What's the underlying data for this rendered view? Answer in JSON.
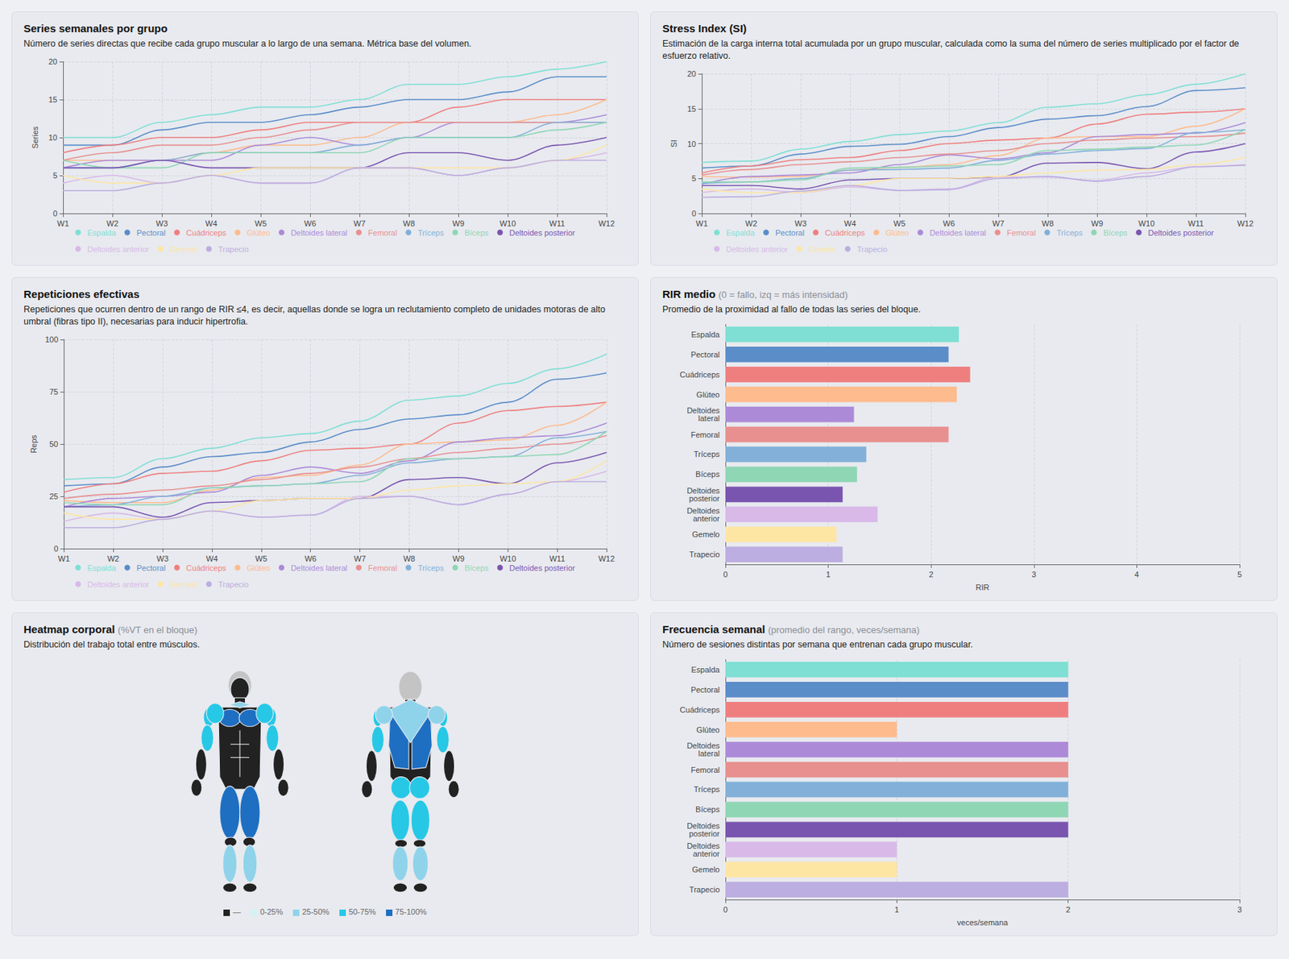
{
  "chart_data": [
    {
      "type": "line",
      "title": "Series semanales por grupo",
      "subtitle": "Número de series directas que recibe cada grupo muscular a lo largo de una semana. Métrica base del volumen.",
      "ylabel": "Series",
      "x": [
        "W1",
        "W2",
        "W3",
        "W4",
        "W5",
        "W6",
        "W7",
        "W8",
        "W9",
        "W10",
        "W11",
        "W12"
      ],
      "ylim": [
        0,
        20
      ],
      "yticks": [
        0,
        5,
        10,
        15,
        20
      ],
      "grid": true,
      "legend": "bottom",
      "series": [
        {
          "name": "Espalda",
          "color": "#7fdfd4",
          "values": [
            10,
            10,
            12,
            13,
            14,
            14,
            15,
            17,
            17,
            18,
            19,
            20
          ]
        },
        {
          "name": "Pectoral",
          "color": "#5b8dc9",
          "values": [
            9,
            9,
            11,
            12,
            12,
            13,
            14,
            15,
            15,
            16,
            18,
            18
          ]
        },
        {
          "name": "Cuádriceps",
          "color": "#ef7f7f",
          "values": [
            8,
            9,
            10,
            10,
            11,
            12,
            12,
            12,
            14,
            15,
            15,
            15
          ]
        },
        {
          "name": "Glúteo",
          "color": "#fdbb8e",
          "values": [
            7,
            7,
            7,
            8,
            9,
            9,
            10,
            12,
            12,
            12,
            13,
            15
          ]
        },
        {
          "name": "Deltoides lateral",
          "color": "#ac8ad8",
          "values": [
            6,
            7,
            7,
            7,
            9,
            10,
            9,
            10,
            12,
            12,
            12,
            13
          ]
        },
        {
          "name": "Femoral",
          "color": "#e8908f",
          "values": [
            7,
            8,
            9,
            9,
            10,
            11,
            12,
            12,
            12,
            12,
            12,
            12
          ]
        },
        {
          "name": "Tríceps",
          "color": "#82b0d9",
          "values": [
            6,
            6,
            7,
            8,
            8,
            8,
            9,
            10,
            10,
            10,
            12,
            12
          ]
        },
        {
          "name": "Bíceps",
          "color": "#8fd6b5",
          "values": [
            7,
            6,
            6,
            8,
            8,
            8,
            8,
            10,
            10,
            10,
            11,
            12
          ]
        },
        {
          "name": "Deltoides posterior",
          "color": "#7a55b0",
          "values": [
            6,
            6,
            7,
            6,
            6,
            6,
            6,
            8,
            8,
            7,
            9,
            10
          ]
        },
        {
          "name": "Deltoides anterior",
          "color": "#d8b9e8",
          "values": [
            4,
            5,
            4,
            5,
            4,
            4,
            6,
            6,
            5,
            6,
            7,
            8
          ]
        },
        {
          "name": "Gemelo",
          "color": "#fde5a4",
          "values": [
            5,
            4,
            4,
            5,
            6,
            6,
            6,
            6,
            6,
            6,
            7,
            9
          ]
        },
        {
          "name": "Trapecio",
          "color": "#bcaee0",
          "values": [
            3,
            3,
            4,
            5,
            4,
            4,
            6,
            6,
            5,
            6,
            7,
            7
          ]
        }
      ]
    },
    {
      "type": "line",
      "title": "Stress Index (SI)",
      "subtitle": "Estimación de la carga interna total acumulada por un grupo muscular, calculada como la suma del número de series multiplicado por el factor de esfuerzo relativo.",
      "ylabel": "SI",
      "x": [
        "W1",
        "W2",
        "W3",
        "W4",
        "W5",
        "W6",
        "W7",
        "W8",
        "W9",
        "W10",
        "W11",
        "W12"
      ],
      "ylim": [
        0,
        20
      ],
      "yticks": [
        0,
        5,
        10,
        15,
        20
      ],
      "grid": true,
      "legend": "bottom",
      "series": [
        {
          "name": "Espalda",
          "color": "#7fdfd4",
          "values": [
            7.3,
            7.5,
            9.2,
            10.3,
            11.3,
            11.8,
            13,
            15.2,
            15.7,
            17,
            18.5,
            20
          ]
        },
        {
          "name": "Pectoral",
          "color": "#5b8dc9",
          "values": [
            6.5,
            6.8,
            8.5,
            9.6,
            9.9,
            11,
            12.3,
            13.5,
            14,
            15.3,
            17.6,
            18
          ]
        },
        {
          "name": "Cuádriceps",
          "color": "#ef7f7f",
          "values": [
            5.8,
            6.8,
            7.7,
            8,
            9,
            10,
            10.5,
            10.8,
            12.8,
            14.2,
            14.5,
            15
          ]
        },
        {
          "name": "Glúteo",
          "color": "#fdbb8e",
          "values": [
            5.3,
            5.2,
            5.3,
            6.2,
            6.6,
            7,
            8.3,
            10.8,
            11,
            11,
            12.5,
            15
          ]
        },
        {
          "name": "Deltoides lateral",
          "color": "#ac8ad8",
          "values": [
            4.2,
            5.3,
            5.5,
            5.8,
            7,
            8.4,
            7.8,
            8.7,
            11,
            11.3,
            11.5,
            13
          ]
        },
        {
          "name": "Femoral",
          "color": "#e8908f",
          "values": [
            5.5,
            6.3,
            7,
            7.4,
            8,
            8.5,
            9,
            10,
            10.5,
            10.8,
            11,
            11.5
          ]
        },
        {
          "name": "Tríceps",
          "color": "#82b0d9",
          "values": [
            4.3,
            4.5,
            5,
            6.2,
            6.3,
            6.5,
            7.6,
            8.5,
            9,
            9.3,
            11.6,
            12
          ]
        },
        {
          "name": "Bíceps",
          "color": "#8fd6b5",
          "values": [
            4.5,
            4.5,
            4.8,
            6.5,
            6.6,
            6.8,
            7,
            9,
            9.2,
            9.5,
            9.8,
            12
          ]
        },
        {
          "name": "Deltoides posterior",
          "color": "#7a55b0",
          "values": [
            4,
            4,
            3.5,
            4.8,
            5,
            5,
            5.2,
            7.2,
            7.3,
            6.4,
            8.8,
            10
          ]
        },
        {
          "name": "Deltoides anterior",
          "color": "#d8b9e8",
          "values": [
            3,
            3.5,
            3,
            3.8,
            3.3,
            3.5,
            5.2,
            5.2,
            4.7,
            5.8,
            6.7,
            7
          ]
        },
        {
          "name": "Gemelo",
          "color": "#fde5a4",
          "values": [
            3.5,
            3,
            3,
            4,
            5,
            5,
            5.3,
            5.8,
            6.2,
            6.3,
            7,
            8
          ]
        },
        {
          "name": "Trapecio",
          "color": "#bcaee0",
          "values": [
            2.3,
            2.4,
            3.2,
            4,
            3.3,
            3.4,
            5,
            5.3,
            4.6,
            5.3,
            6.7,
            6.9
          ]
        }
      ]
    },
    {
      "type": "line",
      "title": "Repeticiones efectivas",
      "subtitle": "Repeticiones que ocurren dentro de un rango de RIR ≤4, es decir, aquellas donde se logra un reclutamiento completo de unidades motoras de alto umbral (fibras tipo II), necesarias para inducir hipertrofia.",
      "ylabel": "Reps",
      "x": [
        "W1",
        "W2",
        "W3",
        "W4",
        "W5",
        "W6",
        "W7",
        "W8",
        "W9",
        "W10",
        "W11",
        "W12"
      ],
      "ylim": [
        0,
        100
      ],
      "yticks": [
        0,
        25,
        50,
        75,
        100
      ],
      "grid": true,
      "legend": "bottom",
      "series": [
        {
          "name": "Espalda",
          "color": "#7fdfd4",
          "values": [
            33,
            34,
            43,
            48,
            53,
            55,
            61,
            71,
            73,
            79,
            86,
            93
          ]
        },
        {
          "name": "Pectoral",
          "color": "#5b8dc9",
          "values": [
            30,
            31,
            39,
            44,
            46,
            51,
            57,
            62,
            64,
            70,
            81,
            84
          ]
        },
        {
          "name": "Cuádriceps",
          "color": "#ef7f7f",
          "values": [
            27,
            31,
            36,
            37,
            42,
            47,
            48,
            50,
            60,
            66,
            68,
            70
          ]
        },
        {
          "name": "Glúteo",
          "color": "#fdbb8e",
          "values": [
            23,
            22,
            22,
            28,
            34,
            35,
            40,
            50,
            51,
            52,
            59,
            70
          ]
        },
        {
          "name": "Deltoides lateral",
          "color": "#ac8ad8",
          "values": [
            20,
            24,
            25,
            27,
            35,
            39,
            36,
            42,
            51,
            53,
            54,
            60
          ]
        },
        {
          "name": "Femoral",
          "color": "#e8908f",
          "values": [
            24,
            26,
            28,
            30,
            33,
            36,
            39,
            43,
            46,
            48,
            50,
            54
          ]
        },
        {
          "name": "Tríceps",
          "color": "#82b0d9",
          "values": [
            20,
            21,
            25,
            29,
            30,
            31,
            35,
            41,
            43,
            44,
            53,
            56
          ]
        },
        {
          "name": "Bíceps",
          "color": "#8fd6b5",
          "values": [
            22,
            21,
            21,
            29,
            30,
            31,
            32,
            43,
            43,
            44,
            45,
            56
          ]
        },
        {
          "name": "Deltoides posterior",
          "color": "#7a55b0",
          "values": [
            20,
            20,
            15,
            22,
            23,
            24,
            24,
            33,
            34,
            31,
            41,
            46
          ]
        },
        {
          "name": "Deltoides anterior",
          "color": "#d8b9e8",
          "values": [
            13,
            17,
            14,
            18,
            15,
            16,
            25,
            25,
            21,
            26,
            32,
            37
          ]
        },
        {
          "name": "Gemelo",
          "color": "#fde5a4",
          "values": [
            17,
            14,
            14,
            18,
            23,
            24,
            24,
            28,
            30,
            31,
            32,
            42
          ]
        },
        {
          "name": "Trapecio",
          "color": "#bcaee0",
          "values": [
            10,
            10,
            14,
            18,
            15,
            16,
            24,
            25,
            21,
            26,
            32,
            32
          ]
        }
      ]
    },
    {
      "type": "bar",
      "orientation": "horizontal",
      "title": "RIR medio",
      "title_note": "(0 = fallo, izq = más intensidad)",
      "subtitle": "Promedio de la proximidad al fallo de todas las series del bloque.",
      "xlabel": "RIR",
      "xlim": [
        0,
        5
      ],
      "xticks": [
        0,
        1,
        2,
        3,
        4,
        5
      ],
      "grid": true,
      "categories": [
        "Espalda",
        "Pectoral",
        "Cuádriceps",
        "Glúteo",
        "Deltoides lateral",
        "Femoral",
        "Tríceps",
        "Bíceps",
        "Deltoides posterior",
        "Deltoides anterior",
        "Gemelo",
        "Trapecio"
      ],
      "values": [
        2.27,
        2.17,
        2.38,
        2.25,
        1.25,
        2.17,
        1.37,
        1.28,
        1.14,
        1.48,
        1.08,
        1.14
      ],
      "colors": [
        "#7fdfd4",
        "#5b8dc9",
        "#ef7f7f",
        "#fdbb8e",
        "#ac8ad8",
        "#e8908f",
        "#82b0d9",
        "#8fd6b5",
        "#7a55b0",
        "#d8b9e8",
        "#fde5a4",
        "#bcaee0"
      ]
    },
    {
      "type": "body_heatmap",
      "title": "Heatmap corporal",
      "title_note": "(%VT en el bloque)",
      "subtitle": "Distribución del trabajo total entre músculos.",
      "levels": [
        {
          "label": "—",
          "color": "#222222"
        },
        {
          "label": "0-25%",
          "color": "#d4f1f4"
        },
        {
          "label": "25-50%",
          "color": "#8fd3ea"
        },
        {
          "label": "50-75%",
          "color": "#27c8e6"
        },
        {
          "label": "75-100%",
          "color": "#1e6fc2"
        }
      ],
      "muscles": [
        {
          "name": "Espalda",
          "level": "75-100%"
        },
        {
          "name": "Pectoral",
          "level": "75-100%"
        },
        {
          "name": "Cuádriceps",
          "level": "75-100%"
        },
        {
          "name": "Glúteo",
          "level": "50-75%"
        },
        {
          "name": "Deltoides lateral",
          "level": "50-75%"
        },
        {
          "name": "Femoral",
          "level": "50-75%"
        },
        {
          "name": "Tríceps",
          "level": "50-75%"
        },
        {
          "name": "Bíceps",
          "level": "50-75%"
        },
        {
          "name": "Deltoides posterior",
          "level": "25-50%"
        },
        {
          "name": "Deltoides anterior",
          "level": "50-75%"
        },
        {
          "name": "Gemelo",
          "level": "25-50%"
        },
        {
          "name": "Trapecio",
          "level": "25-50%"
        }
      ]
    },
    {
      "type": "bar",
      "orientation": "horizontal",
      "title": "Frecuencia semanal",
      "title_note": "(promedio del rango, veces/semana)",
      "subtitle": "Número de sesiones distintas por semana que entrenan cada grupo muscular.",
      "xlabel": "veces/semana",
      "xlim": [
        0,
        3
      ],
      "xticks": [
        0,
        1,
        2,
        3
      ],
      "grid": true,
      "categories": [
        "Espalda",
        "Pectoral",
        "Cuádriceps",
        "Glúteo",
        "Deltoides lateral",
        "Femoral",
        "Tríceps",
        "Bíceps",
        "Deltoides posterior",
        "Deltoides anterior",
        "Gemelo",
        "Trapecio"
      ],
      "values": [
        2,
        2,
        2,
        1,
        2,
        2,
        2,
        2,
        2,
        1,
        1,
        2
      ],
      "colors": [
        "#7fdfd4",
        "#5b8dc9",
        "#ef7f7f",
        "#fdbb8e",
        "#ac8ad8",
        "#e8908f",
        "#82b0d9",
        "#8fd6b5",
        "#7a55b0",
        "#d8b9e8",
        "#fde5a4",
        "#bcaee0"
      ]
    }
  ]
}
